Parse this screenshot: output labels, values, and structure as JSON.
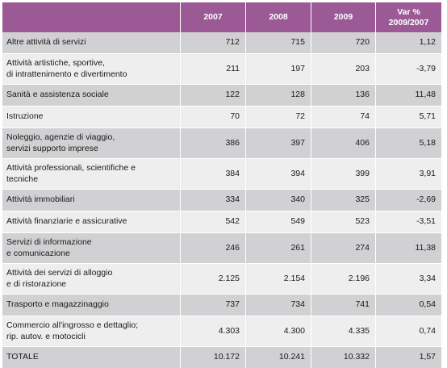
{
  "header": {
    "col0": "",
    "col1": "2007",
    "col2": "2008",
    "col3": "2009",
    "col4": "Var %\n2009/2007"
  },
  "rows": [
    {
      "label": "Altre attività di servizi",
      "v2007": "712",
      "v2008": "715",
      "v2009": "720",
      "var": "1,12"
    },
    {
      "label": "Attività artistiche, sportive,\ndi intrattenimento e divertimento",
      "v2007": "211",
      "v2008": "197",
      "v2009": "203",
      "var": "-3,79"
    },
    {
      "label": "Sanità e assistenza sociale",
      "v2007": "122",
      "v2008": "128",
      "v2009": "136",
      "var": "11,48"
    },
    {
      "label": "Istruzione",
      "v2007": "70",
      "v2008": "72",
      "v2009": "74",
      "var": "5,71"
    },
    {
      "label": "Noleggio, agenzie di viaggio,\nservizi supporto imprese",
      "v2007": "386",
      "v2008": "397",
      "v2009": "406",
      "var": "5,18"
    },
    {
      "label": "Attività professionali, scientifiche e\ntecniche",
      "v2007": "384",
      "v2008": "394",
      "v2009": "399",
      "var": "3,91"
    },
    {
      "label": "Attività immobiliari",
      "v2007": "334",
      "v2008": "340",
      "v2009": "325",
      "var": "-2,69"
    },
    {
      "label": "Attività finanziarie e assicurative",
      "v2007": "542",
      "v2008": "549",
      "v2009": "523",
      "var": "-3,51"
    },
    {
      "label": "Servizi di informazione\ne comunicazione",
      "v2007": "246",
      "v2008": "261",
      "v2009": "274",
      "var": "11,38"
    },
    {
      "label": "Attività dei servizi di alloggio\ne di ristorazione",
      "v2007": "2.125",
      "v2008": "2.154",
      "v2009": "2.196",
      "var": "3,34"
    },
    {
      "label": "Trasporto e magazzinaggio",
      "v2007": "737",
      "v2008": "734",
      "v2009": "741",
      "var": "0,54"
    },
    {
      "label": "Commercio all'ingrosso e dettaglio;\nrip. autov. e motocicli",
      "v2007": "4.303",
      "v2008": "4.300",
      "v2009": "4.335",
      "var": "0,74"
    },
    {
      "label": "TOTALE",
      "v2007": "10.172",
      "v2008": "10.241",
      "v2009": "10.332",
      "var": "1,57"
    }
  ]
}
